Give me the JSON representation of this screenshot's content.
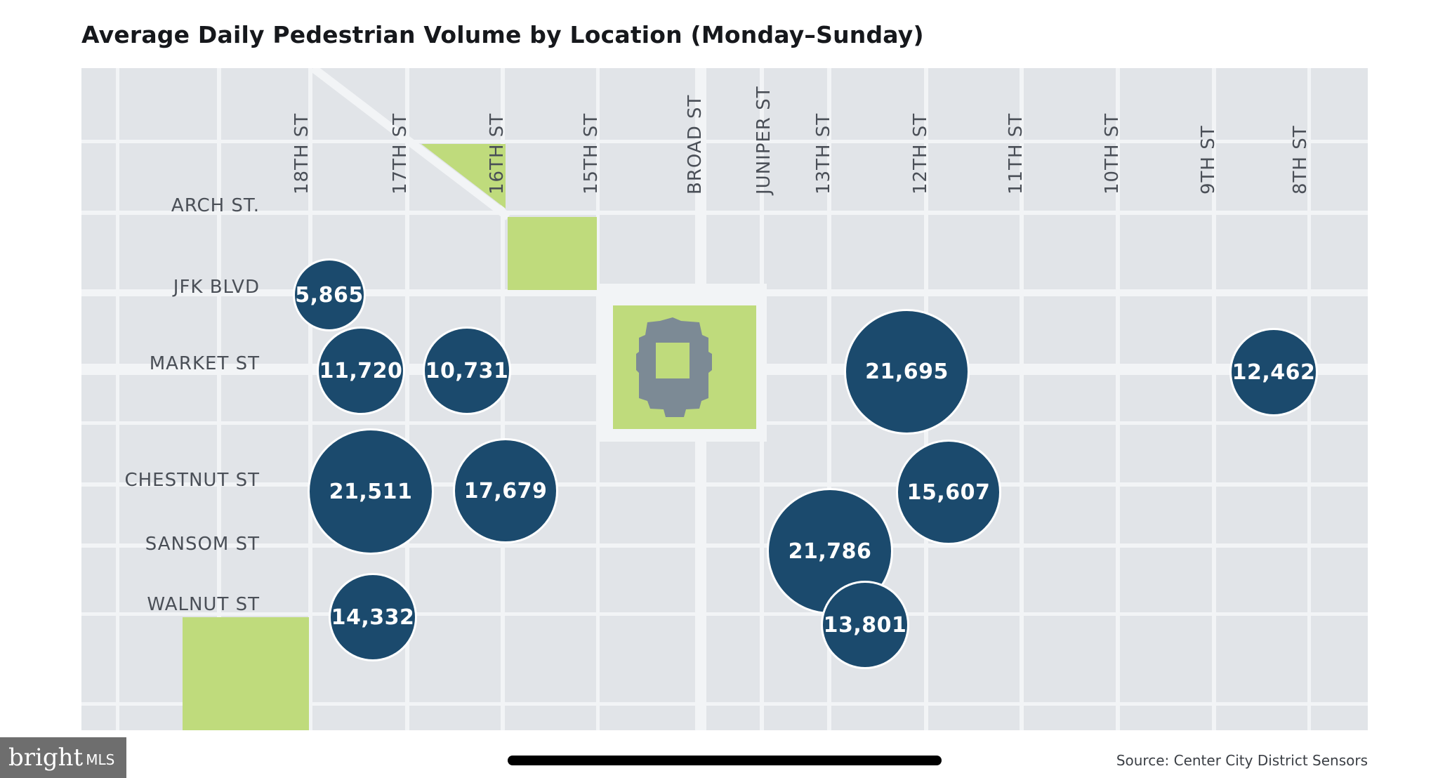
{
  "title": "Average Daily Pedestrian Volume by Location (Monday–Sunday)",
  "source": "Source: Center City District Sensors",
  "logo": {
    "main": "bright",
    "suffix": "MLS"
  },
  "colors": {
    "map_background": "#e1e4e8",
    "street": "#f2f4f6",
    "park": "#bfdb7c",
    "city_hall": "#7c8a95",
    "bubble": "#1b4a6d"
  },
  "streets": {
    "east_west": [
      "ARCH ST.",
      "JFK BLVD",
      "MARKET ST",
      "CHESTNUT ST",
      "SANSOM ST",
      "WALNUT ST"
    ],
    "north_south": [
      "18TH ST",
      "17TH ST",
      "16TH ST",
      "15TH ST",
      "BROAD ST",
      "JUNIPER ST",
      "13TH ST",
      "12TH ST",
      "11TH ST",
      "10TH ST",
      "9TH ST",
      "8TH ST"
    ]
  },
  "locations": [
    {
      "label": "5,865",
      "value": 5865,
      "near": "18th St & JFK Blvd"
    },
    {
      "label": "11,720",
      "value": 11720,
      "near": "18th St & Market St"
    },
    {
      "label": "10,731",
      "value": 10731,
      "near": "16th St & Market St"
    },
    {
      "label": "21,695",
      "value": 21695,
      "near": "12th St & Market St"
    },
    {
      "label": "12,462",
      "value": 12462,
      "near": "8th St & Market St"
    },
    {
      "label": "21,511",
      "value": 21511,
      "near": "17th St & Chestnut St"
    },
    {
      "label": "17,679",
      "value": 17679,
      "near": "16th St & Chestnut St"
    },
    {
      "label": "15,607",
      "value": 15607,
      "near": "12th St & Chestnut St"
    },
    {
      "label": "21,786",
      "value": 21786,
      "near": "13th St & Sansom St"
    },
    {
      "label": "14,332",
      "value": 14332,
      "near": "17th St & Walnut St"
    },
    {
      "label": "13,801",
      "value": 13801,
      "near": "13th St & Walnut St"
    }
  ]
}
